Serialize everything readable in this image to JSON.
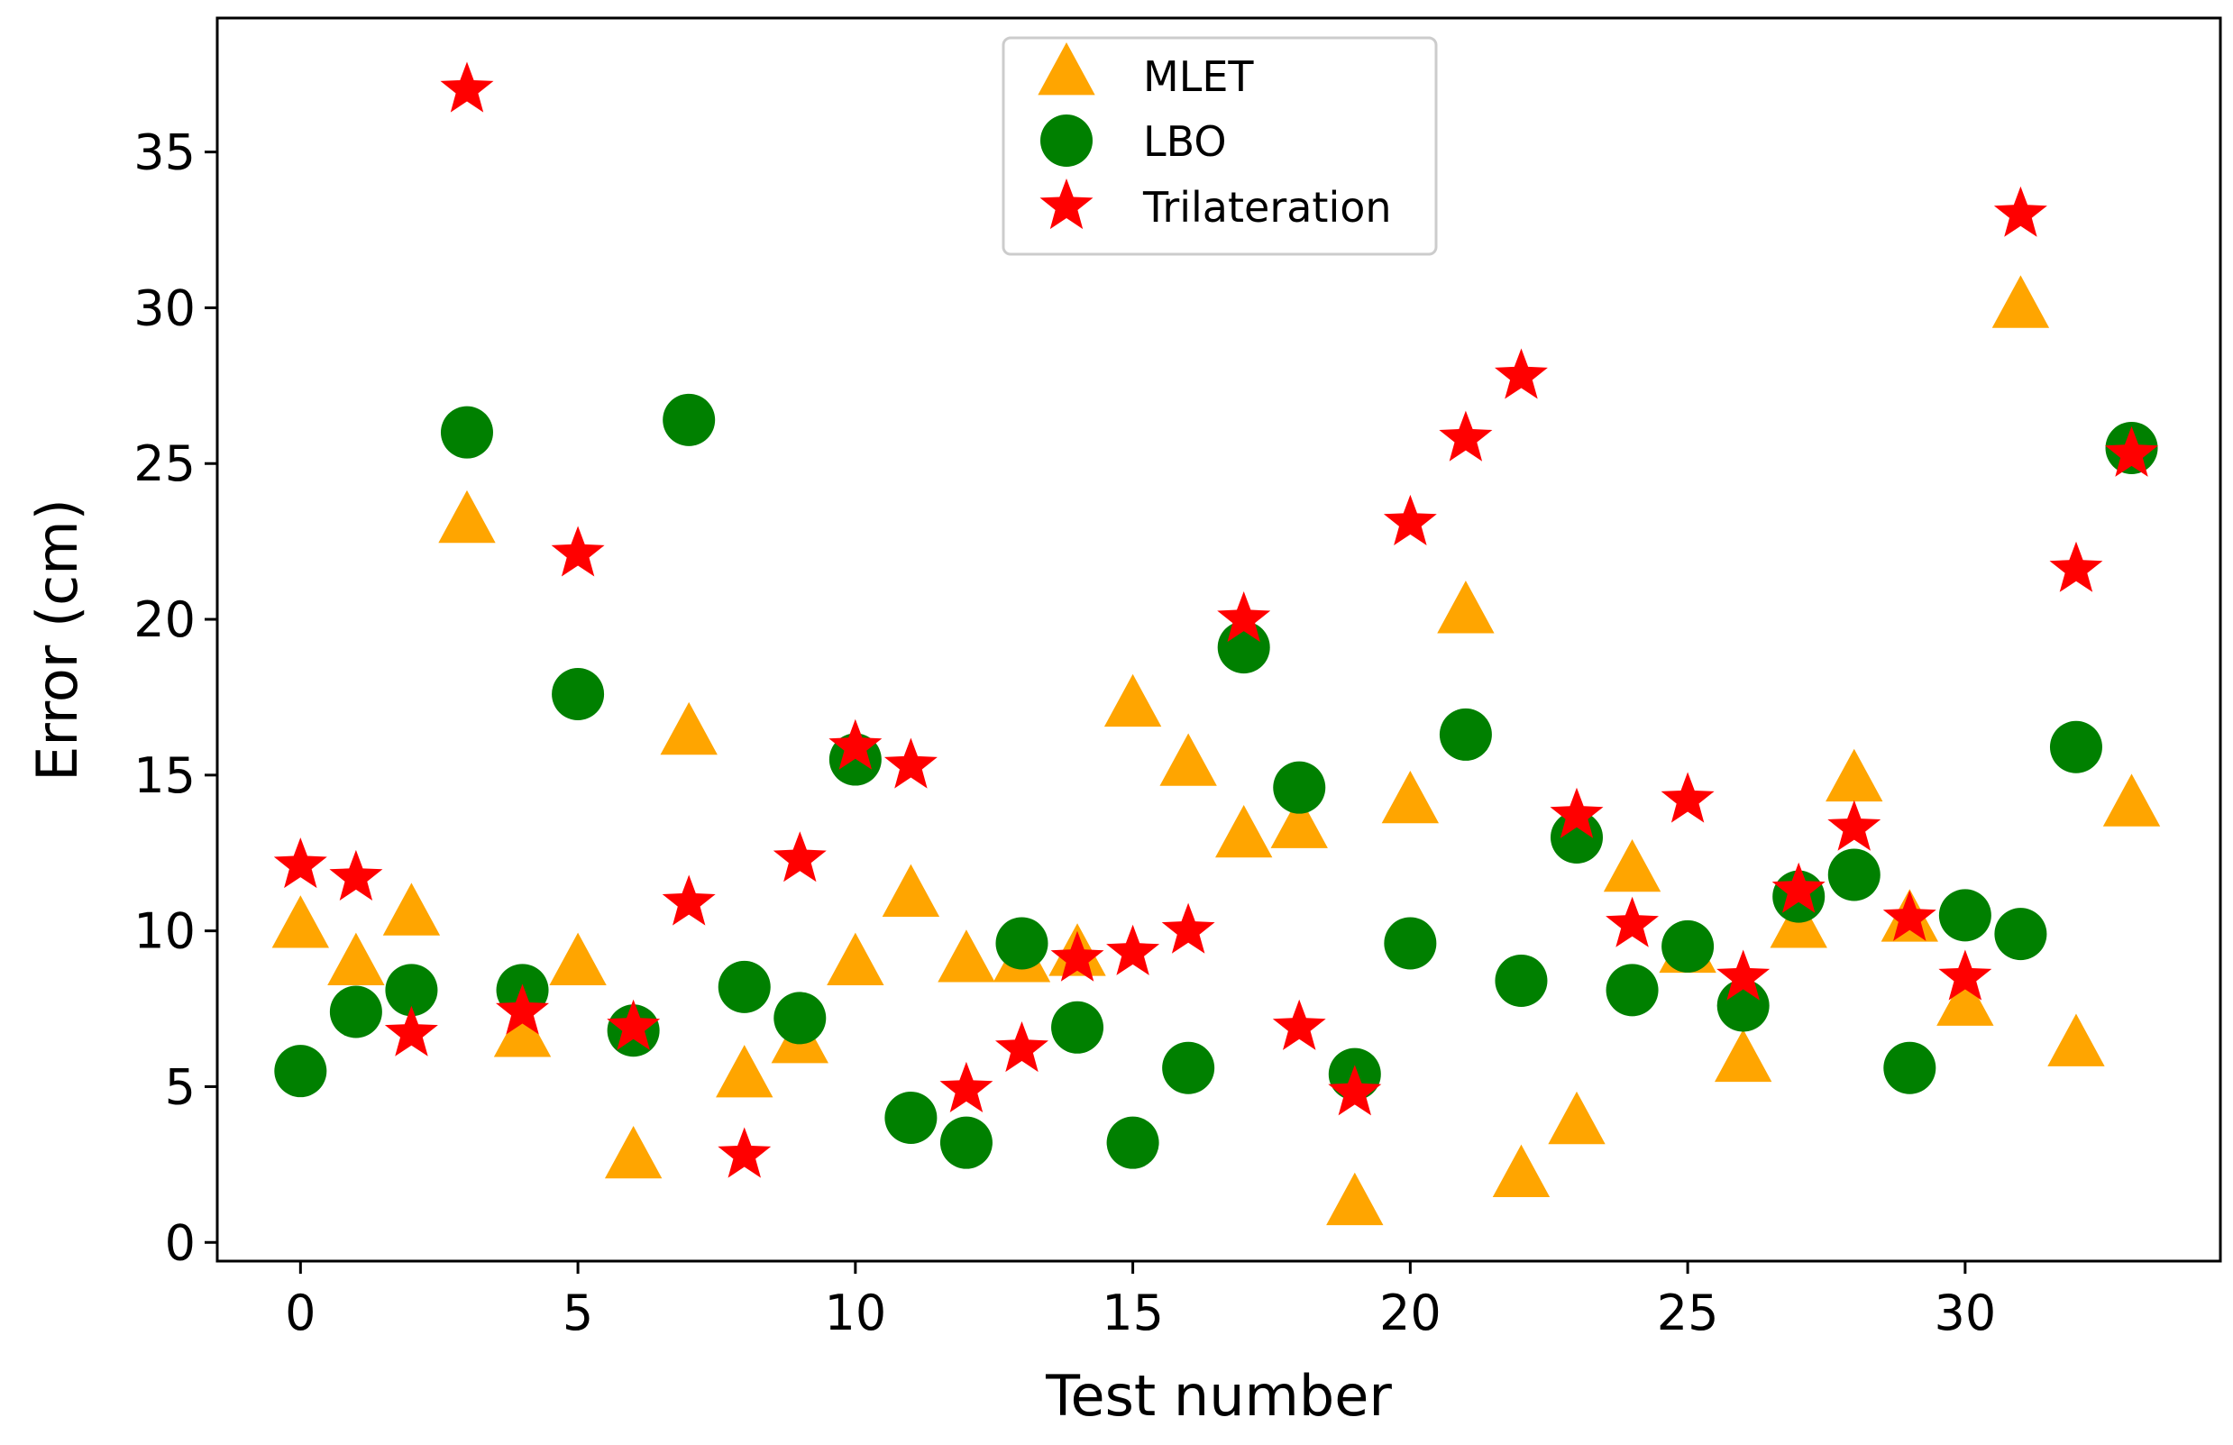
{
  "chart_data": {
    "type": "scatter",
    "title": "",
    "xlabel": "Test number",
    "ylabel": "Error (cm)",
    "xlim": [
      -1.5,
      34.6
    ],
    "ylim": [
      -0.6,
      39.3
    ],
    "xticks": [
      0,
      5,
      10,
      15,
      20,
      25,
      30
    ],
    "yticks": [
      0,
      5,
      10,
      15,
      20,
      25,
      30,
      35
    ],
    "xtick_labels": [
      "0",
      "5",
      "10",
      "15",
      "20",
      "25",
      "30"
    ],
    "ytick_labels": [
      "0",
      "5",
      "10",
      "15",
      "20",
      "25",
      "30",
      "35"
    ],
    "grid": false,
    "legend_position": "top-center",
    "x": [
      0,
      1,
      2,
      3,
      4,
      5,
      6,
      7,
      8,
      9,
      10,
      11,
      12,
      13,
      14,
      15,
      16,
      17,
      18,
      19,
      20,
      21,
      22,
      23,
      24,
      25,
      26,
      27,
      28,
      29,
      30,
      31,
      32,
      33
    ],
    "series": [
      {
        "name": "MLET",
        "marker": "triangle",
        "color": "#FFA500",
        "values": [
          10.1,
          8.9,
          10.5,
          23.1,
          6.6,
          8.9,
          2.7,
          16.3,
          5.3,
          6.4,
          8.9,
          11.1,
          9.0,
          9.0,
          9.2,
          17.2,
          15.3,
          13.0,
          13.3,
          1.2,
          14.1,
          20.2,
          2.1,
          3.8,
          11.9,
          9.3,
          5.8,
          10.1,
          14.8,
          10.3,
          7.6,
          30.0,
          6.3,
          14.0
        ]
      },
      {
        "name": "LBO",
        "marker": "circle",
        "color": "#008000",
        "values": [
          5.5,
          7.4,
          8.1,
          26.0,
          8.1,
          17.6,
          6.8,
          26.4,
          8.2,
          7.2,
          15.5,
          4.0,
          3.2,
          9.6,
          6.9,
          3.2,
          5.6,
          19.1,
          14.6,
          5.4,
          9.6,
          16.3,
          8.4,
          13.0,
          8.1,
          9.5,
          7.6,
          11.1,
          11.8,
          5.6,
          10.5,
          9.9,
          15.9,
          25.5
        ]
      },
      {
        "name": "Trilateration",
        "marker": "star",
        "color": "#FF0000",
        "values": [
          12.1,
          11.7,
          6.7,
          37.0,
          7.4,
          22.1,
          6.9,
          10.9,
          2.8,
          12.3,
          15.9,
          15.3,
          4.9,
          6.2,
          9.1,
          9.3,
          10.0,
          20.0,
          6.9,
          4.8,
          23.1,
          25.8,
          27.8,
          13.7,
          10.2,
          14.2,
          8.5,
          11.3,
          13.3,
          10.4,
          8.5,
          33.0,
          21.6,
          25.3
        ]
      }
    ]
  }
}
